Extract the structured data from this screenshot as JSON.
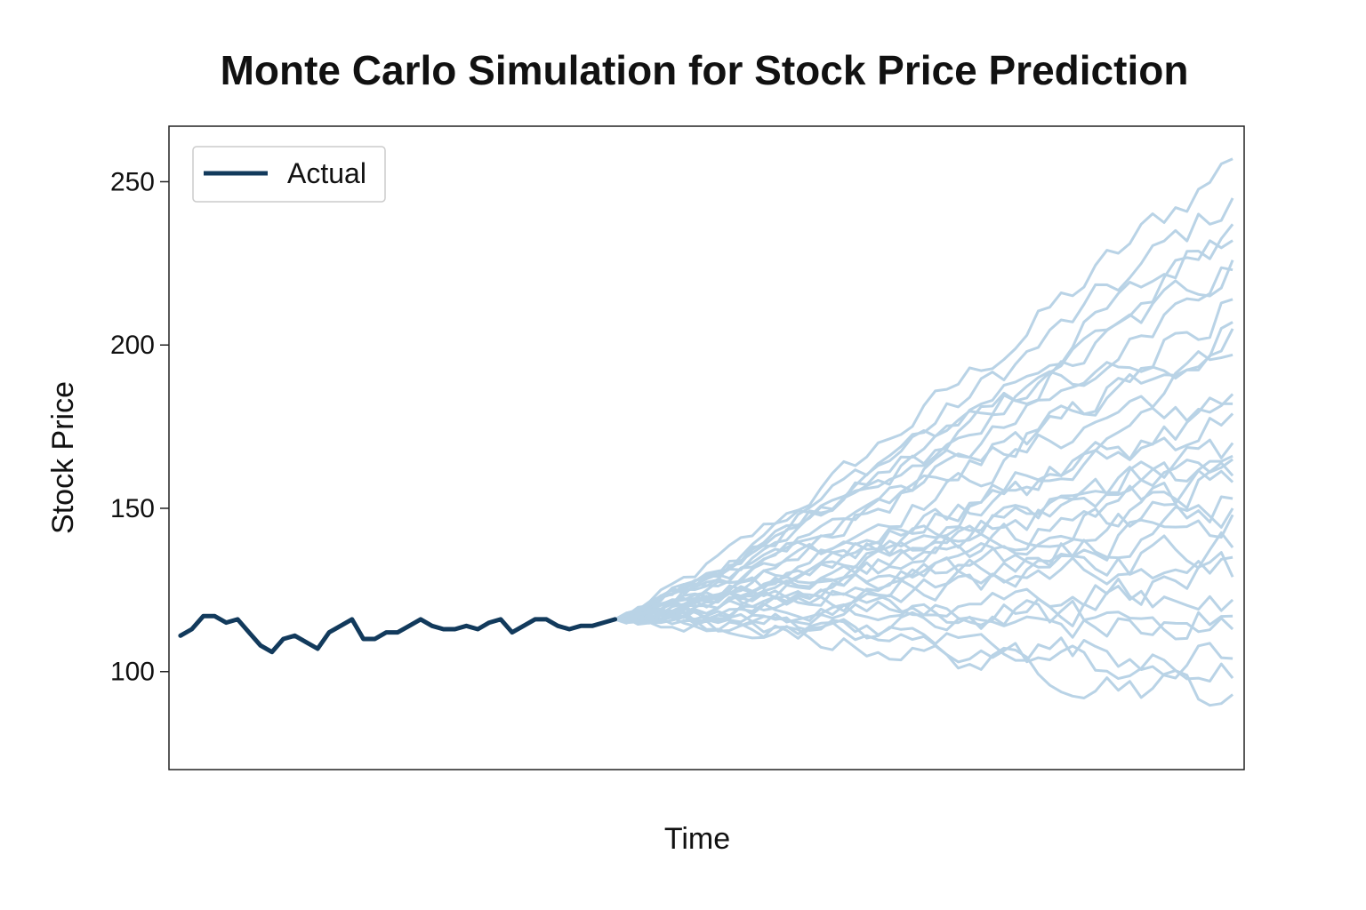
{
  "chart_data": {
    "type": "line",
    "title": "Monte Carlo Simulation for Stock Price Prediction",
    "xlabel": "Time",
    "ylabel": "Stock Price",
    "ylim": [
      70,
      267
    ],
    "xlim": [
      -1,
      93
    ],
    "yticks": [
      100,
      150,
      200,
      250
    ],
    "x_ticks_shown": false,
    "grid": false,
    "legend": {
      "position": "top-left",
      "entries": [
        "Actual"
      ]
    },
    "colors": {
      "actual": "#123a5c",
      "simulation": "#b9d3e6"
    },
    "actual": {
      "name": "Actual",
      "x": [
        0,
        1,
        2,
        3,
        4,
        5,
        6,
        7,
        8,
        9,
        10,
        11,
        12,
        13,
        14,
        15,
        16,
        17,
        18,
        19,
        20,
        21,
        22,
        23,
        24,
        25,
        26,
        27,
        28,
        29,
        30,
        31,
        32,
        33,
        34,
        35,
        36,
        37,
        38
      ],
      "y": [
        111,
        113,
        117,
        117,
        115,
        116,
        112,
        108,
        106,
        110,
        111,
        109,
        107,
        112,
        114,
        116,
        110,
        110,
        112,
        112,
        114,
        116,
        114,
        113,
        113,
        114,
        113,
        115,
        116,
        112,
        114,
        116,
        116,
        114,
        113,
        114,
        114,
        115,
        116
      ]
    },
    "simulations": {
      "start_x": 38,
      "end_x": 92,
      "start_value": 116,
      "final_values": [
        257,
        245,
        237,
        232,
        226,
        214,
        207,
        197,
        185,
        179,
        170,
        166,
        160,
        153,
        150,
        138,
        129,
        117,
        113,
        104,
        98,
        93,
        165,
        148,
        135,
        182,
        205,
        223,
        122,
        158
      ]
    }
  }
}
